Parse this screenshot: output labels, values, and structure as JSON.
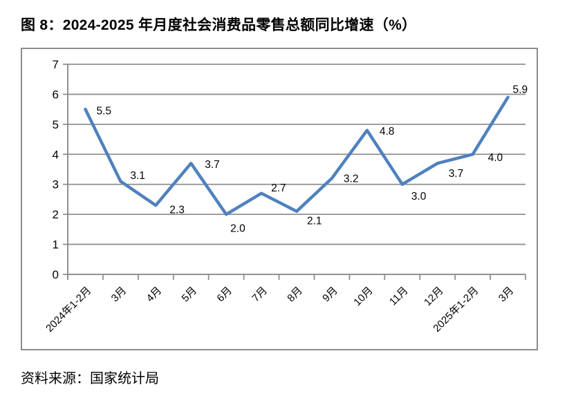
{
  "title": "图 8：2024-2025 年月度社会消费品零售总额同比增速（%）",
  "source": "资料来源：国家统计局",
  "chart_data": {
    "type": "line",
    "title": "2024-2025 年月度社会消费品零售总额同比增速（%）",
    "categories": [
      "2024年1-2月",
      "3月",
      "4月",
      "5月",
      "6月",
      "7月",
      "8月",
      "9月",
      "10月",
      "11月",
      "12月",
      "2025年1-2月",
      "3月"
    ],
    "values": [
      5.5,
      3.1,
      2.3,
      3.7,
      2.0,
      2.7,
      2.1,
      3.2,
      4.8,
      3.0,
      3.7,
      4.0,
      5.9
    ],
    "xlabel": "",
    "ylabel": "",
    "ylim": [
      0,
      7
    ],
    "yticks": [
      0,
      1,
      2,
      3,
      4,
      5,
      6,
      7
    ],
    "grid": true,
    "legend": "none",
    "data_labels": true,
    "colors": {
      "line": "#4F81BD",
      "grid": "#8f8f8f",
      "axis": "#8f8f8f",
      "text": "#000000"
    }
  }
}
